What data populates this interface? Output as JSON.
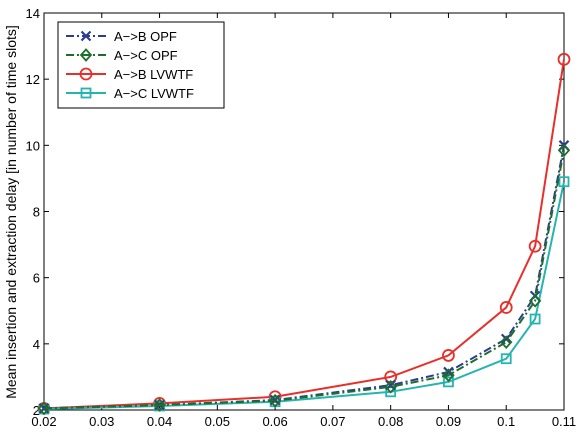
{
  "chart_data": {
    "type": "line",
    "title": "",
    "xlabel": "",
    "ylabel": "Mean insertion and extraction delay [in number of time slots]",
    "xlim": [
      0.02,
      0.11
    ],
    "ylim": [
      2,
      14
    ],
    "grid": false,
    "legend_position": "top-left",
    "x": [
      0.02,
      0.04,
      0.06,
      0.08,
      0.09,
      0.1,
      0.105,
      0.11
    ],
    "x_ticks": [
      0.02,
      0.03,
      0.04,
      0.05,
      0.06,
      0.07,
      0.08,
      0.09,
      0.1,
      0.11
    ],
    "x_tick_labels": [
      "0.02",
      "0.03",
      "0.04",
      "0.05",
      "0.06",
      "0.07",
      "0.08",
      "0.09",
      "0.1",
      "0.11"
    ],
    "y_ticks": [
      2,
      4,
      6,
      8,
      10,
      12,
      14
    ],
    "y_tick_labels": [
      "2",
      "4",
      "6",
      "8",
      "10",
      "12",
      "14"
    ],
    "series": [
      {
        "name": "A−>B OPF",
        "values": [
          2.05,
          2.15,
          2.3,
          2.75,
          3.15,
          4.15,
          5.45,
          10.0
        ],
        "color": "#2b3d8f",
        "dash": "dashdot",
        "marker": "x"
      },
      {
        "name": "A−>C OPF",
        "values": [
          2.05,
          2.15,
          2.28,
          2.7,
          3.05,
          4.05,
          5.3,
          9.85
        ],
        "color": "#1e6e2a",
        "dash": "dashdot",
        "marker": "diamond"
      },
      {
        "name": "A−>B LVWTF",
        "values": [
          2.05,
          2.2,
          2.4,
          3.0,
          3.65,
          5.1,
          6.95,
          12.6
        ],
        "color": "#e8302a",
        "dash": "solid",
        "marker": "circle"
      },
      {
        "name": "A−>C LVWTF",
        "values": [
          2.03,
          2.12,
          2.25,
          2.55,
          2.85,
          3.55,
          4.75,
          8.9
        ],
        "color": "#27b3b0",
        "dash": "solid",
        "marker": "square"
      }
    ]
  }
}
